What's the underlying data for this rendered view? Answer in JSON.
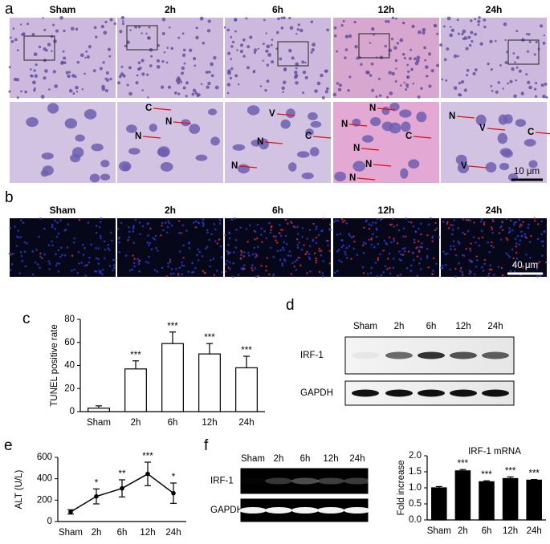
{
  "figure": {
    "panel_labels": [
      "a",
      "b",
      "c",
      "d",
      "e",
      "f"
    ],
    "a": {
      "columns": [
        "Sham",
        "2h",
        "6h",
        "12h",
        "24h"
      ],
      "annotations": [
        [],
        [
          "C",
          "N",
          "N"
        ],
        [
          "V",
          "N",
          "C",
          "N"
        ],
        [
          "N",
          "N",
          "N",
          "C",
          "N",
          "N"
        ],
        [
          "N",
          "V",
          "C",
          "V"
        ]
      ],
      "scale_bar": "10 μm"
    },
    "b": {
      "columns": [
        "Sham",
        "2h",
        "6h",
        "12h",
        "24h"
      ],
      "scale_bar": "40 μm"
    },
    "d": {
      "lanes": [
        "Sham",
        "2h",
        "6h",
        "12h",
        "24h"
      ],
      "rows": [
        "IRF-1",
        "GAPDH"
      ]
    },
    "f": {
      "lanes": [
        "Sham",
        "2h",
        "6h",
        "12h",
        "24h"
      ],
      "rows": [
        "IRF-1",
        "GAPDH"
      ]
    }
  },
  "chart_data": [
    {
      "type": "bar",
      "y_label": "TUNEL positive rate",
      "categories": [
        "Sham",
        "2h",
        "6h",
        "12h",
        "24h"
      ],
      "values": [
        3,
        37,
        59,
        50,
        38
      ],
      "errors": [
        2,
        7,
        10,
        9,
        10
      ],
      "significance": [
        null,
        "***",
        "***",
        "***",
        "***"
      ],
      "color": "#ffffff",
      "ylim": [
        0,
        80
      ],
      "yticks": [
        0,
        20,
        40,
        60,
        80
      ]
    },
    {
      "type": "line",
      "y_label": "ALT (U/L)",
      "categories": [
        "Sham",
        "2h",
        "6h",
        "12h",
        "24h"
      ],
      "values": [
        90,
        235,
        310,
        445,
        265
      ],
      "errors": [
        20,
        70,
        80,
        110,
        95
      ],
      "significance": [
        null,
        "*",
        "**",
        "***",
        "*"
      ],
      "color": "#000000",
      "ylim": [
        0,
        600
      ],
      "yticks": [
        0,
        200,
        400,
        600
      ]
    },
    {
      "type": "bar",
      "title": "IRF-1 mRNA",
      "y_label": "Fold increase",
      "categories": [
        "Sham",
        "2h",
        "6h",
        "12h",
        "24h"
      ],
      "values": [
        1.0,
        1.53,
        1.19,
        1.29,
        1.24
      ],
      "errors": [
        0.04,
        0.04,
        0.03,
        0.05,
        0.02
      ],
      "significance": [
        null,
        "***",
        "***",
        "***",
        "***"
      ],
      "color": "#000000",
      "ylim": [
        0,
        2
      ],
      "yticks": [
        {
          "value": 0,
          "label": "0.0"
        },
        0.5,
        {
          "value": 1,
          "label": "1.0"
        },
        1.5,
        {
          "value": 2,
          "label": "2.0"
        }
      ]
    }
  ]
}
